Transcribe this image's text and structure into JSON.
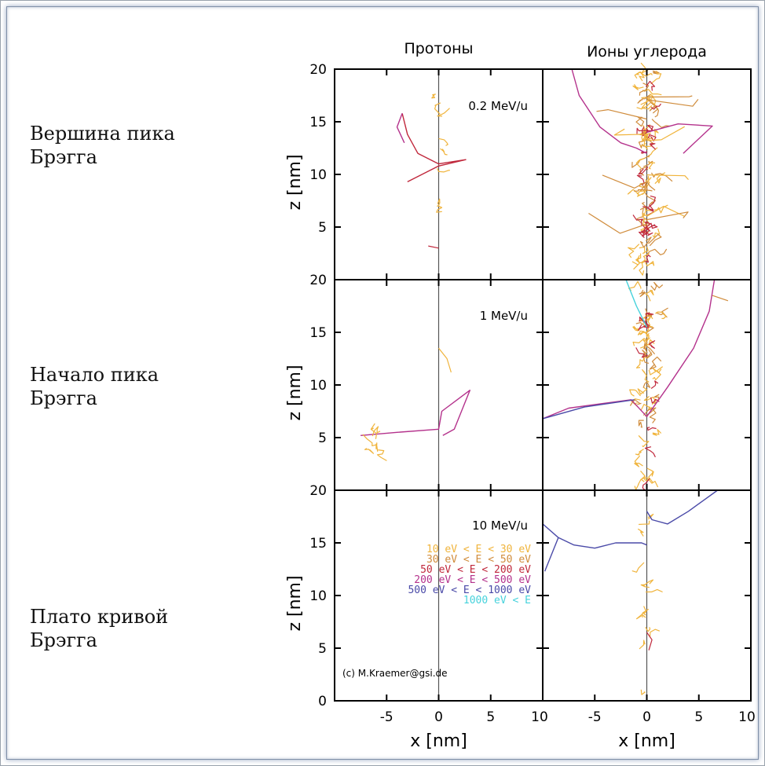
{
  "row_labels": [
    {
      "line1": "Вершина пика",
      "line2": "Брэгга"
    },
    {
      "line1": "Начало пика",
      "line2": "Брэгга"
    },
    {
      "line1": "Плато кривой",
      "line2": "Брэгга"
    }
  ],
  "chart_data": {
    "type": "scatter",
    "columns": [
      "Протоны",
      "Ионы углерода"
    ],
    "panels": [
      {
        "row": 0,
        "energy": "0.2  MeV/u"
      },
      {
        "row": 1,
        "energy": "1  MeV/u"
      },
      {
        "row": 2,
        "energy": "10  MeV/u"
      }
    ],
    "xlabel": "x  [nm]",
    "ylabel": "z  [nm]",
    "xlim": [
      -10,
      10
    ],
    "ylim": [
      0,
      20
    ],
    "x_ticks": [
      "-5",
      "0",
      "5",
      "10"
    ],
    "y_ticks": [
      "20",
      "15",
      "10",
      "5",
      "0"
    ],
    "legend": [
      {
        "label": "10   eV  <  E  <    30  eV",
        "color": "#f0b43c"
      },
      {
        "label": "30   eV  <  E  <    50  eV",
        "color": "#d08c3c"
      },
      {
        "label": "50   eV  <  E  <   200  eV",
        "color": "#c0283c"
      },
      {
        "label": "200  eV  <  E  <   500  eV",
        "color": "#b4328c"
      },
      {
        "label": "500  eV  <  E  <  1000  eV",
        "color": "#4a4aa8"
      },
      {
        "label": "1000  eV  <  E",
        "color": "#46d2dc"
      }
    ],
    "credit": "(c)  M.Kraemer@gsi.de"
  }
}
